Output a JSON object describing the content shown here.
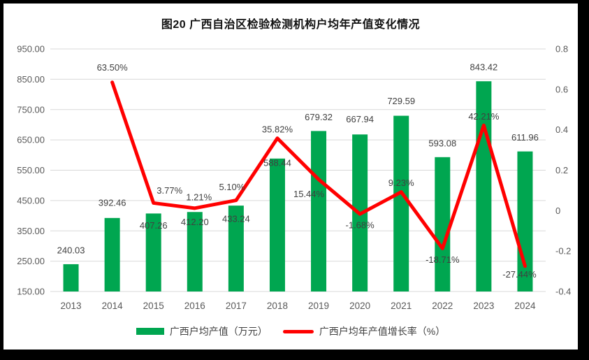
{
  "frame": {
    "background_color": "#000000",
    "chart_background_color": "#FFFFFF"
  },
  "chart_data": {
    "type": "bar",
    "subtype": "combo-bar-line",
    "title": "图20 广西自治区检验检测机构户均年产值变化情况",
    "categories": [
      "2013",
      "2014",
      "2015",
      "2016",
      "2017",
      "2018",
      "2019",
      "2020",
      "2021",
      "2022",
      "2023",
      "2024"
    ],
    "series": [
      {
        "name": "广西户均产值（万元）",
        "type": "bar",
        "axis": "left",
        "color": "#00A650",
        "values": [
          240.03,
          392.46,
          407.26,
          412.2,
          433.24,
          588.44,
          679.32,
          667.94,
          729.59,
          593.08,
          843.42,
          611.96
        ],
        "labels": [
          "240.03",
          "392.46",
          "407.26",
          "412.20",
          "433.24",
          "588.44",
          "679.32",
          "667.94",
          "729.59",
          "593.08",
          "843.42",
          "611.96"
        ],
        "label_dy": [
          -20,
          -22,
          17,
          14,
          19,
          6,
          -20,
          -22,
          -21,
          -20,
          -20,
          -20
        ]
      },
      {
        "name": "广西户均年产值增长率（%）",
        "type": "line",
        "axis": "right",
        "color": "#FF0000",
        "values": [
          null,
          0.635,
          0.0377,
          0.0121,
          0.051,
          0.3582,
          0.1544,
          -0.0168,
          0.0923,
          -0.1871,
          0.4221,
          -0.2744
        ],
        "labels": [
          null,
          "63.50%",
          "3.77%",
          "1.21%",
          "5.10%",
          "35.82%",
          "15.44%",
          "-1.68%",
          "9.23%",
          "-18.71%",
          "42.21%",
          "-27.44%"
        ],
        "label_dx": [
          0,
          0,
          23,
          6,
          -6,
          0,
          -14,
          0,
          0,
          0,
          0,
          -8
        ],
        "label_dy": [
          0,
          -21,
          -18,
          -16,
          -19,
          -13,
          21,
          16,
          -13,
          16,
          -13,
          12
        ]
      }
    ],
    "left_axis": {
      "min": 150,
      "max": 950,
      "step": 100,
      "ticks": [
        "950.00",
        "850.00",
        "750.00",
        "650.00",
        "550.00",
        "450.00",
        "350.00",
        "250.00",
        "150.00"
      ]
    },
    "right_axis": {
      "min": -0.4,
      "max": 0.8,
      "step": 0.2,
      "ticks": [
        "0.8",
        "0.6",
        "0.4",
        "0.2",
        "0",
        "-0.2",
        "-0.4"
      ]
    },
    "grid": true,
    "gridline_color": "#D9D9D9",
    "axis_text_color": "#595959",
    "label_text_color": "#404040",
    "legend": {
      "position": "bottom",
      "entries": [
        {
          "label": "广西户均产值（万元）",
          "marker": "rect",
          "color": "#00A650"
        },
        {
          "label": "广西户均年产值增长率（%）",
          "marker": "line",
          "color": "#FF0000"
        }
      ]
    }
  }
}
